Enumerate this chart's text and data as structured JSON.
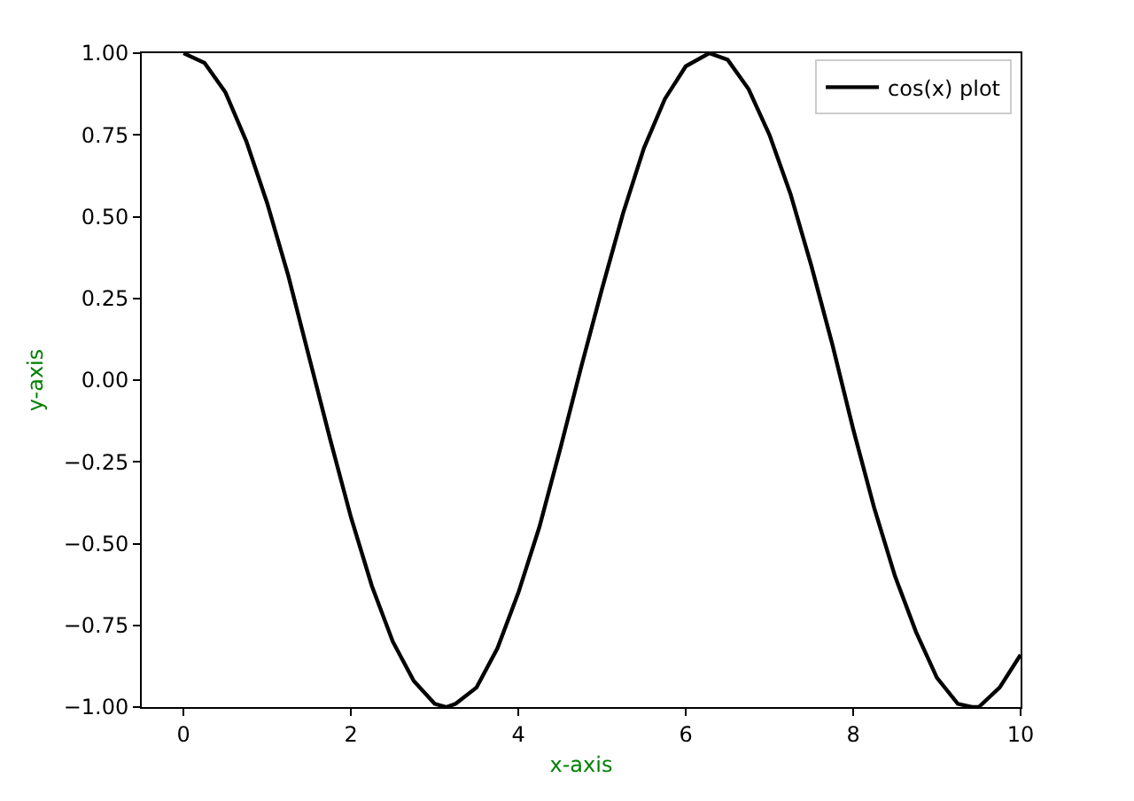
{
  "chart_data": {
    "type": "line",
    "xlabel": "x-axis",
    "ylabel": "y-axis",
    "x": [
      0,
      0.25,
      0.5,
      0.75,
      1,
      1.25,
      1.5,
      1.75,
      2,
      2.25,
      2.5,
      2.75,
      3,
      3.14,
      3.25,
      3.5,
      3.75,
      4,
      4.25,
      4.5,
      4.75,
      5,
      5.25,
      5.5,
      5.75,
      6,
      6.28,
      6.5,
      6.75,
      7,
      7.25,
      7.5,
      7.75,
      8,
      8.25,
      8.5,
      8.75,
      9,
      9.25,
      9.42,
      9.5,
      9.75,
      10
    ],
    "series": [
      {
        "name": "cos(x) plot",
        "color": "#000000",
        "values": [
          1,
          0.97,
          0.88,
          0.73,
          0.54,
          0.32,
          0.07,
          -0.18,
          -0.42,
          -0.63,
          -0.8,
          -0.92,
          -0.99,
          -1,
          -0.99,
          -0.94,
          -0.82,
          -0.65,
          -0.45,
          -0.21,
          0.04,
          0.28,
          0.51,
          0.71,
          0.86,
          0.96,
          1,
          0.98,
          0.89,
          0.75,
          0.57,
          0.35,
          0.11,
          -0.15,
          -0.39,
          -0.6,
          -0.77,
          -0.91,
          -0.99,
          -1,
          -1,
          -0.94,
          -0.84
        ]
      }
    ],
    "xlim": [
      -0.5,
      10
    ],
    "ylim": [
      -1,
      1
    ],
    "xticks": [
      0,
      2,
      4,
      6,
      8,
      10
    ],
    "yticks": [
      {
        "value": -1,
        "label": "−1.00"
      },
      {
        "value": -0.75,
        "label": "−0.75"
      },
      {
        "value": -0.5,
        "label": "−0.50"
      },
      {
        "value": -0.25,
        "label": "−0.25"
      },
      {
        "value": 0,
        "label": "0.00"
      },
      {
        "value": 0.25,
        "label": "0.25"
      },
      {
        "value": 0.5,
        "label": "0.50"
      },
      {
        "value": 0.75,
        "label": "0.75"
      },
      {
        "value": 1,
        "label": "1.00"
      }
    ],
    "grid": false,
    "legend": "top right",
    "line_style": "solid",
    "marker": "none"
  }
}
